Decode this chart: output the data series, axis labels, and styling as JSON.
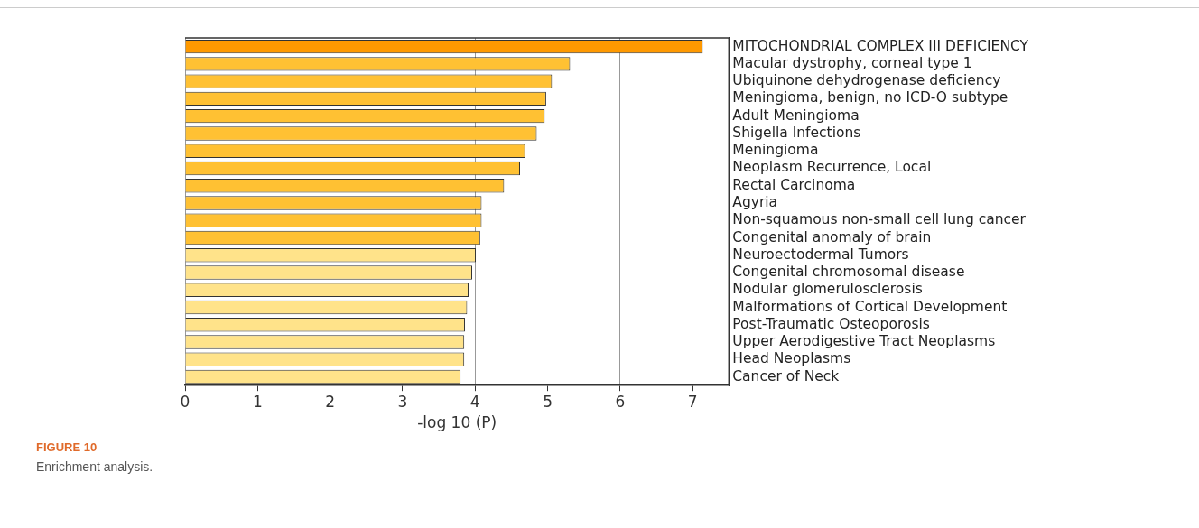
{
  "chart_data": {
    "type": "bar",
    "orientation": "horizontal",
    "xlabel": "-log 10 (P)",
    "categories": [
      "MITOCHONDRIAL COMPLEX III DEFICIENCY",
      "Macular dystrophy, corneal type 1",
      "Ubiquinone dehydrogenase deficiency",
      "Meningioma, benign, no ICD-O subtype",
      "Adult Meningioma",
      "Shigella Infections",
      "Meningioma",
      "Neoplasm Recurrence, Local",
      "Rectal Carcinoma",
      "Agyria",
      "Non-squamous non-small cell lung cancer",
      "Congenital anomaly of brain",
      "Neuroectodermal Tumors",
      "Congenital chromosomal disease",
      "Nodular glomerulosclerosis",
      "Malformations of Cortical Development",
      "Post-Traumatic Osteoporosis",
      "Upper Aerodigestive Tract Neoplasms",
      "Head Neoplasms",
      "Cancer of Neck"
    ],
    "values": [
      7.14,
      5.31,
      5.06,
      4.98,
      4.96,
      4.85,
      4.69,
      4.62,
      4.4,
      4.09,
      4.09,
      4.07,
      4.01,
      3.96,
      3.91,
      3.89,
      3.86,
      3.85,
      3.85,
      3.8
    ],
    "colors": [
      "#ff9900",
      "#ffc133",
      "#ffc133",
      "#ffc133",
      "#ffc133",
      "#ffc133",
      "#ffc133",
      "#ffc133",
      "#ffc133",
      "#ffc133",
      "#ffc133",
      "#ffc133",
      "#ffe38a",
      "#ffe38a",
      "#ffe38a",
      "#ffe38a",
      "#ffe38a",
      "#ffe38a",
      "#ffe38a",
      "#ffe38a"
    ],
    "xlim": [
      0,
      7.5
    ],
    "xticks": [
      0,
      1,
      2,
      3,
      4,
      5,
      6,
      7
    ],
    "grid": true,
    "legend": false,
    "annotations": [
      "FIGURE 10",
      "Enrichment analysis."
    ]
  }
}
